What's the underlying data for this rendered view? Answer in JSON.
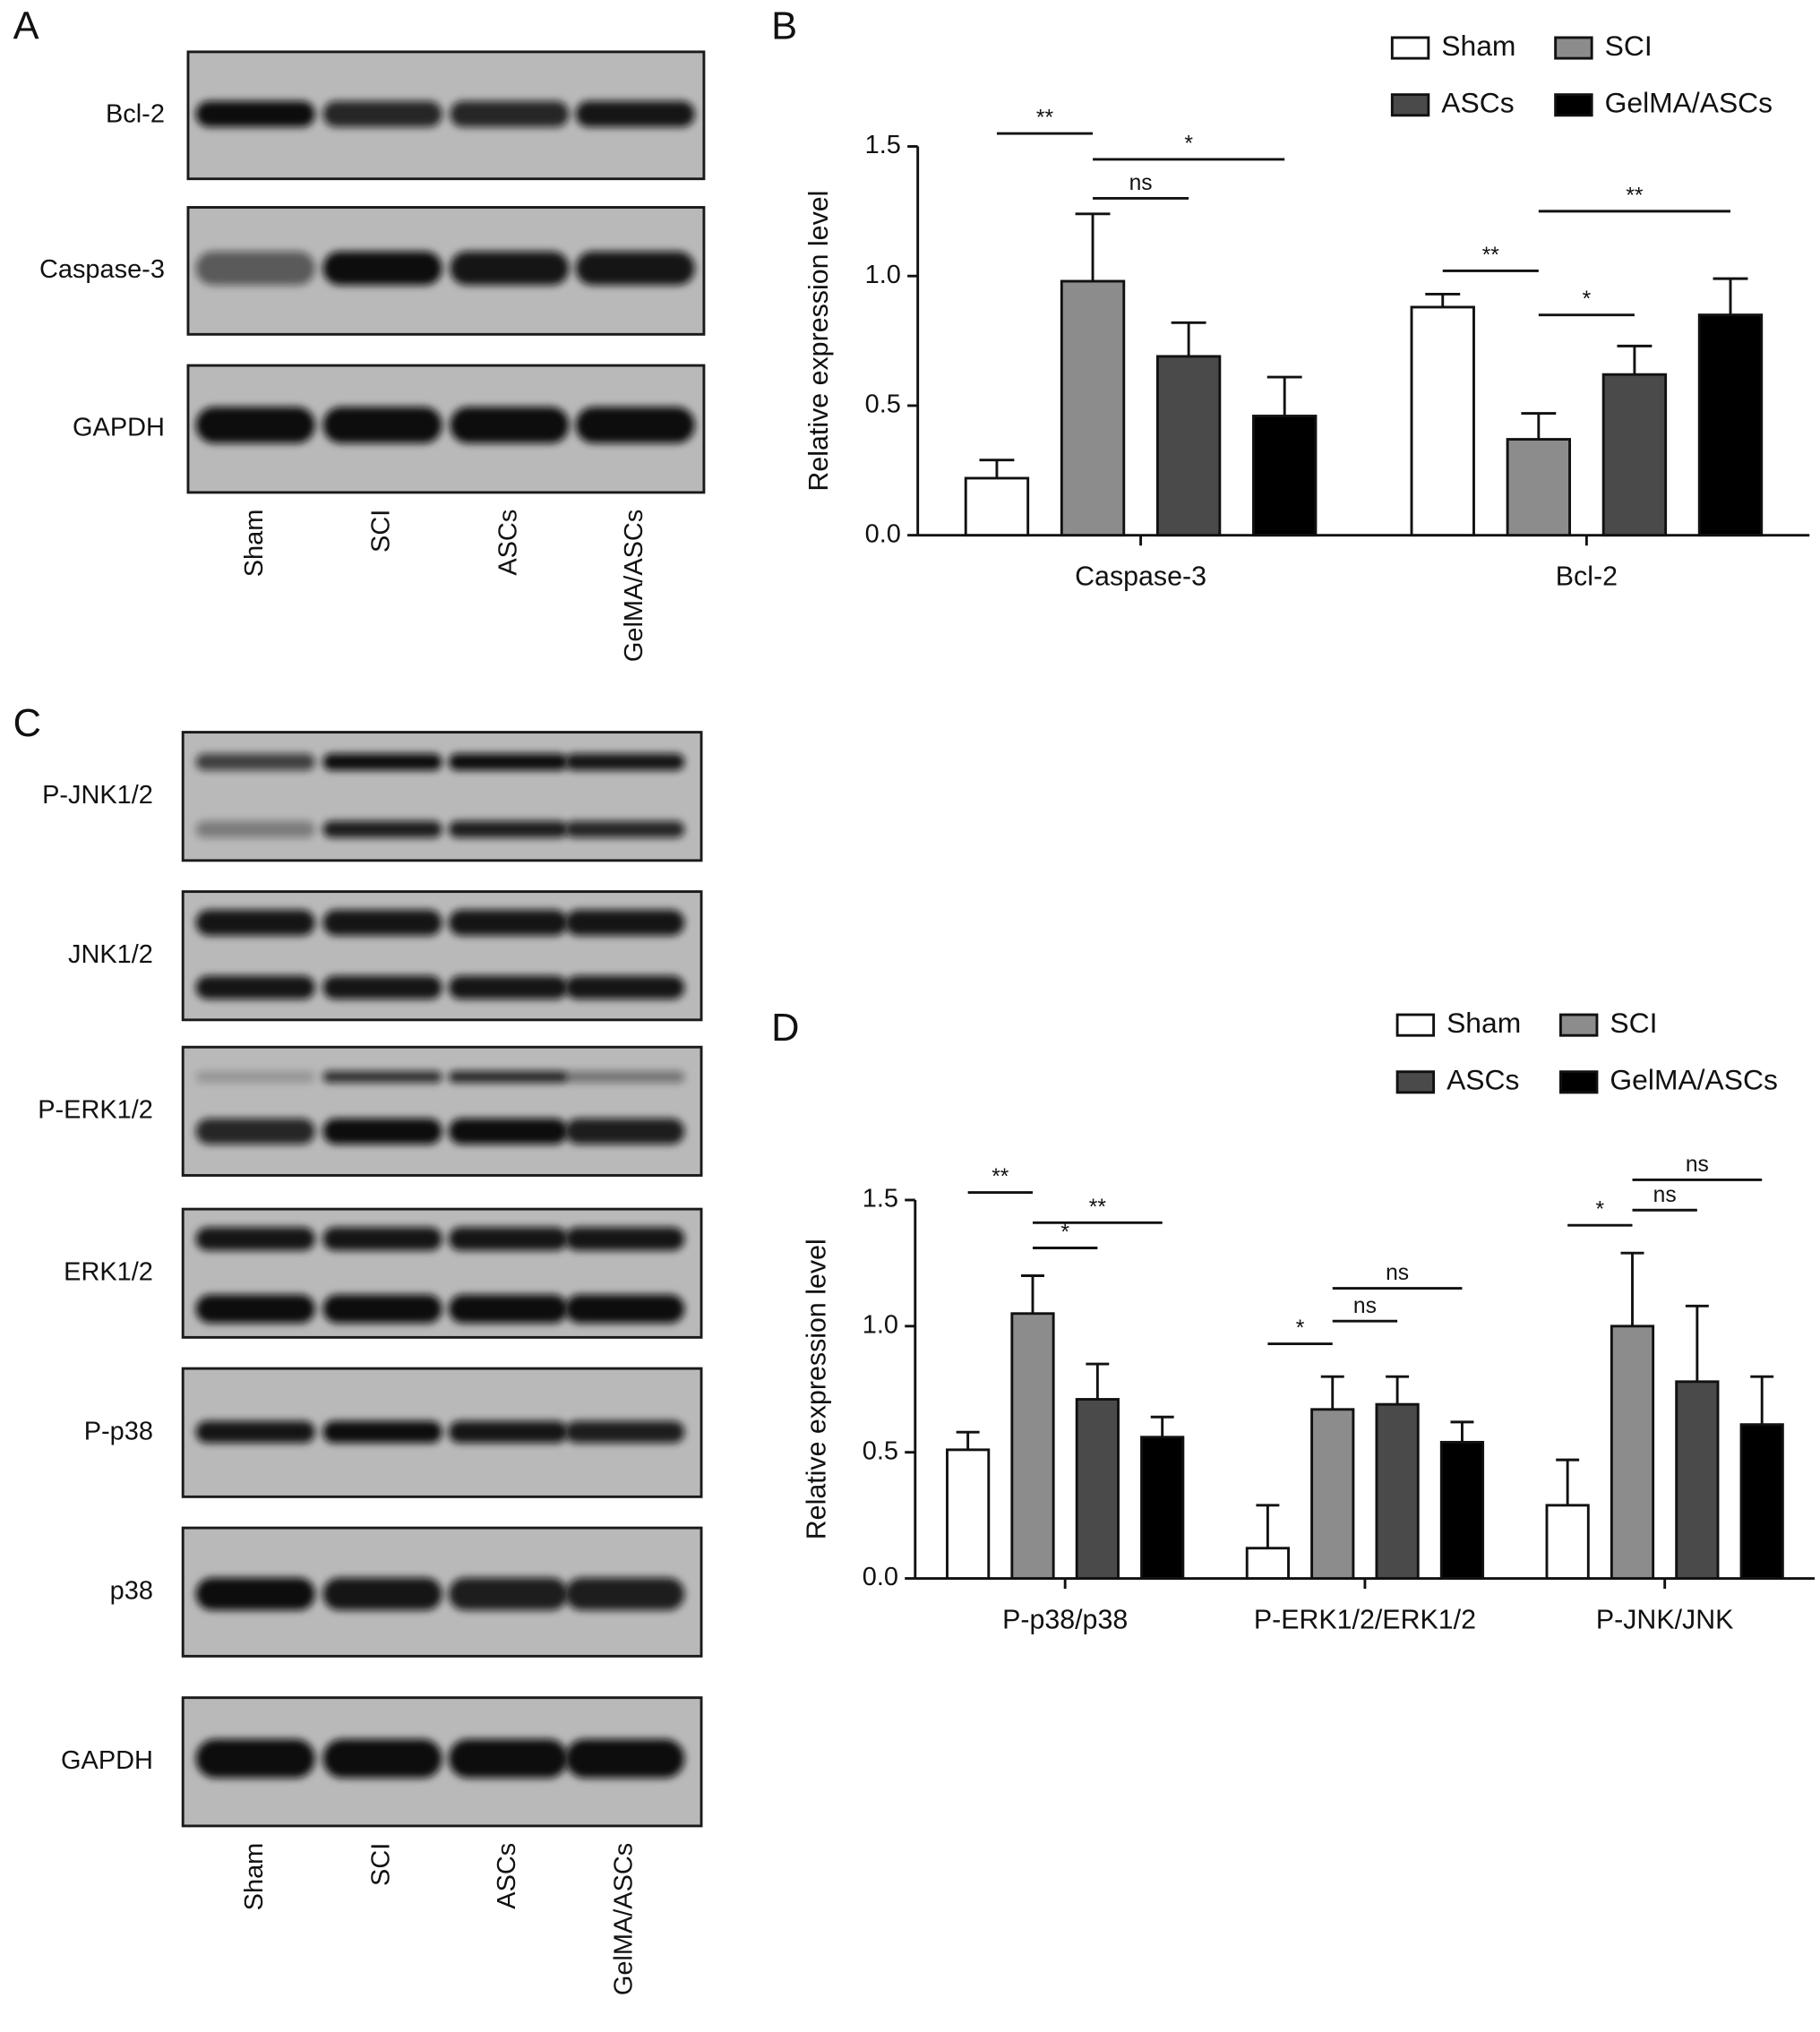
{
  "figure": {
    "panel_labels": [
      "A",
      "B",
      "C",
      "D"
    ],
    "blots": [
      {
        "rows": [
          "Bcl-2",
          "Caspase-3",
          "GAPDH"
        ],
        "lanes": [
          "Sham",
          "SCI",
          "ASCs",
          "GelMA/ASCs"
        ]
      },
      {
        "rows": [
          "P-JNK1/2",
          "JNK1/2",
          "P-ERK1/2",
          "ERK1/2",
          "P-p38",
          "p38",
          "GAPDH"
        ],
        "lanes": [
          "Sham",
          "SCI",
          "ASCs",
          "GelMA/ASCs"
        ]
      }
    ]
  },
  "chart_data": [
    {
      "type": "bar",
      "ylabel": "Relative expression level",
      "categories": [
        "Caspase-3",
        "Bcl-2"
      ],
      "series": [
        {
          "name": "Sham",
          "color": "#ffffff",
          "values": [
            0.22,
            0.88
          ],
          "errors": [
            0.07,
            0.05
          ]
        },
        {
          "name": "SCI",
          "color": "#8c8c8c",
          "values": [
            0.98,
            0.37
          ],
          "errors": [
            0.26,
            0.1
          ]
        },
        {
          "name": "ASCs",
          "color": "#4a4a4a",
          "values": [
            0.69,
            0.62
          ],
          "errors": [
            0.13,
            0.11
          ]
        },
        {
          "name": "GelMA/ASCs",
          "color": "#000000",
          "values": [
            0.46,
            0.85
          ],
          "errors": [
            0.15,
            0.14
          ]
        }
      ],
      "ylim": [
        0,
        1.5
      ],
      "yticks": [
        {
          "value": 0,
          "label": "0.0"
        },
        0.5,
        {
          "value": 1,
          "label": "1.0"
        },
        1.5
      ],
      "legend": "top-right",
      "annotations": [
        {
          "text": "**",
          "category": 0,
          "from": 0,
          "to": 1,
          "y": 1.55
        },
        {
          "text": "*",
          "category": 0,
          "from": 1,
          "to": 3,
          "y": 1.45
        },
        {
          "text": "ns",
          "category": 0,
          "from": 1,
          "to": 2,
          "y": 1.3
        },
        {
          "text": "**",
          "category": 1,
          "from": 0,
          "to": 1,
          "y": 1.02
        },
        {
          "text": "**",
          "category": 1,
          "from": 1,
          "to": 3,
          "y": 1.25
        },
        {
          "text": "*",
          "category": 1,
          "from": 1,
          "to": 2,
          "y": 0.85
        }
      ]
    },
    {
      "type": "bar",
      "ylabel": "Relative expression level",
      "categories": [
        "P-p38/p38",
        "P-ERK1/2/ERK1/2",
        "P-JNK/JNK"
      ],
      "series": [
        {
          "name": "Sham",
          "color": "#ffffff",
          "values": [
            0.51,
            0.12,
            0.29
          ],
          "errors": [
            0.07,
            0.17,
            0.18
          ]
        },
        {
          "name": "SCI",
          "color": "#8c8c8c",
          "values": [
            1.05,
            0.67,
            1.0
          ],
          "errors": [
            0.15,
            0.13,
            0.29
          ]
        },
        {
          "name": "ASCs",
          "color": "#4a4a4a",
          "values": [
            0.71,
            0.69,
            0.78
          ],
          "errors": [
            0.14,
            0.11,
            0.3
          ]
        },
        {
          "name": "GelMA/ASCs",
          "color": "#000000",
          "values": [
            0.56,
            0.54,
            0.61
          ],
          "errors": [
            0.08,
            0.08,
            0.19
          ]
        }
      ],
      "ylim": [
        0,
        1.5
      ],
      "yticks": [
        {
          "value": 0,
          "label": "0.0"
        },
        0.5,
        {
          "value": 1,
          "label": "1.0"
        },
        1.5
      ],
      "legend": "top-right",
      "annotations": [
        {
          "text": "**",
          "category": 0,
          "from": 0,
          "to": 1,
          "y": 1.53
        },
        {
          "text": "*",
          "category": 0,
          "from": 1,
          "to": 2,
          "y": 1.31
        },
        {
          "text": "**",
          "category": 0,
          "from": 1,
          "to": 3,
          "y": 1.41
        },
        {
          "text": "*",
          "category": 1,
          "from": 0,
          "to": 1,
          "y": 0.93
        },
        {
          "text": "ns",
          "category": 1,
          "from": 1,
          "to": 2,
          "y": 1.02
        },
        {
          "text": "ns",
          "category": 1,
          "from": 1,
          "to": 3,
          "y": 1.15
        },
        {
          "text": "*",
          "category": 2,
          "from": 0,
          "to": 1,
          "y": 1.4
        },
        {
          "text": "ns",
          "category": 2,
          "from": 1,
          "to": 2,
          "y": 1.46
        },
        {
          "text": "ns",
          "category": 2,
          "from": 1,
          "to": 3,
          "y": 1.58
        }
      ]
    }
  ]
}
